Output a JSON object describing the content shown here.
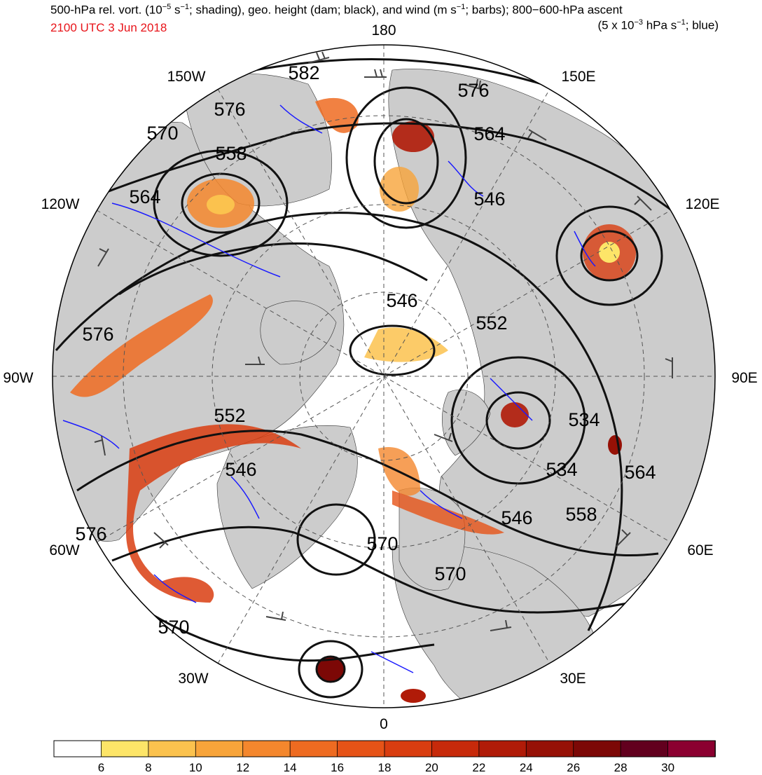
{
  "header": {
    "title_a": "500-hPa rel. vort. (10",
    "title_b": "s",
    "title_c": "; shading), geo. height (dam; black), and wind (m s",
    "title_d": "; barbs); 800−600-hPa ascent",
    "exp_minus5": "−5",
    "exp_minus1": "−1",
    "exp_minus3": "−3",
    "subtitle_a": "(5 x 10",
    "subtitle_b": " hPa s",
    "subtitle_c": "; blue)",
    "valid_time": "2100 UTC 3 Jun 2018",
    "valid_time_color": "#e8141a"
  },
  "map": {
    "projection": "north polar stereographic",
    "longitude_labels": {
      "top": "180",
      "bottom": "0",
      "left": "90W",
      "right": "90E",
      "upper_left": "150W",
      "upper_right": "150E",
      "left_upper": "120W",
      "right_upper": "120E",
      "left_lower": "60W",
      "right_lower": "60E",
      "lower_left": "30W",
      "lower_right": "30E"
    },
    "height_contour_labels": [
      "582",
      "576",
      "576",
      "570",
      "558",
      "564",
      "564",
      "546",
      "546",
      "552",
      "576",
      "552",
      "546",
      "534",
      "534",
      "564",
      "546",
      "558",
      "570",
      "570",
      "576",
      "570"
    ],
    "colors": {
      "land": "#cccccc",
      "ocean": "#ffffff",
      "contours": "#111111",
      "ascent": "#1a1aff"
    }
  },
  "colorbar": {
    "ticks": [
      "6",
      "8",
      "10",
      "12",
      "14",
      "16",
      "18",
      "20",
      "22",
      "24",
      "26",
      "28",
      "30"
    ],
    "colors": [
      "#ffffff",
      "#fde568",
      "#fbc24e",
      "#f8a43a",
      "#f4872d",
      "#ee6b21",
      "#e65317",
      "#d93d10",
      "#c72a0b",
      "#b01b08",
      "#961106",
      "#7c0806",
      "#62001e",
      "#8b0030"
    ]
  }
}
